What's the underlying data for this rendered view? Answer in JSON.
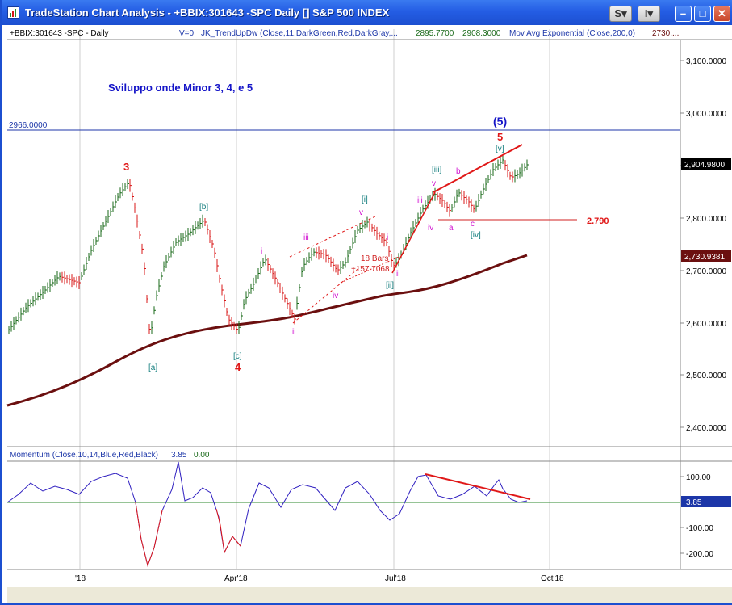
{
  "window": {
    "title": "TradeStation Chart Analysis - +BBIX:301643 -SPC Daily [] S&P 500 INDEX",
    "buttons": {
      "s": "S",
      "i": "I"
    }
  },
  "header": {
    "symbol": "+BBIX:301643 -SPC - Daily",
    "v0": "V=0",
    "indicator1": "JK_TrendUpDw (Close,11,DarkGreen,Red,DarkGray,...",
    "val1": "2895.7700",
    "val2": "2908.3000",
    "indicator2": "Mov Avg Exponential (Close,200,0)",
    "val3": "2730...."
  },
  "annotation": {
    "title": "Sviluppo onde Minor 3, 4, e 5",
    "hline_label": "2966.0000",
    "support_label": "2.790",
    "bars_label": "18 Bars",
    "pts_label": "+157.7068"
  },
  "price_axis": {
    "ticks": [
      "3,100.0000",
      "3,000.0000",
      "2,900.0000",
      "2,800.0000",
      "2,700.0000",
      "2,600.0000",
      "2,500.0000",
      "2,400.0000"
    ],
    "last_price": "2,904.9800",
    "ema_value": "2,730.9381"
  },
  "momentum": {
    "label": "Momentum (Close,10,14,Blue,Red,Black)",
    "value": "3.85",
    "zero": "0.00",
    "ticks": [
      "100.00",
      "-100.00",
      "-200.00"
    ],
    "last_badge": "3.85"
  },
  "date_axis": {
    "labels": [
      "'18",
      "Apr'18",
      "Jul'18",
      "Oct'18"
    ]
  },
  "wave_labels": [
    "3",
    "[a]",
    "[b]",
    "[c]",
    "4",
    "i",
    "ii",
    "iii",
    "iv",
    "v",
    "[i]",
    "[ii]",
    "i",
    "ii",
    "iii",
    "iv",
    "v",
    "[iii]",
    "a",
    "b",
    "c",
    "[iv]",
    "[v]",
    "5",
    "(5)"
  ],
  "colors": {
    "up": "#1a6a1a",
    "down": "#d81818",
    "ema": "#6b0f0f",
    "hline": "#1c36a8",
    "trend": "#e01818",
    "wave_blue": "#1515c8",
    "wave_teal": "#137e7e",
    "wave_magenta": "#d010d0"
  }
}
